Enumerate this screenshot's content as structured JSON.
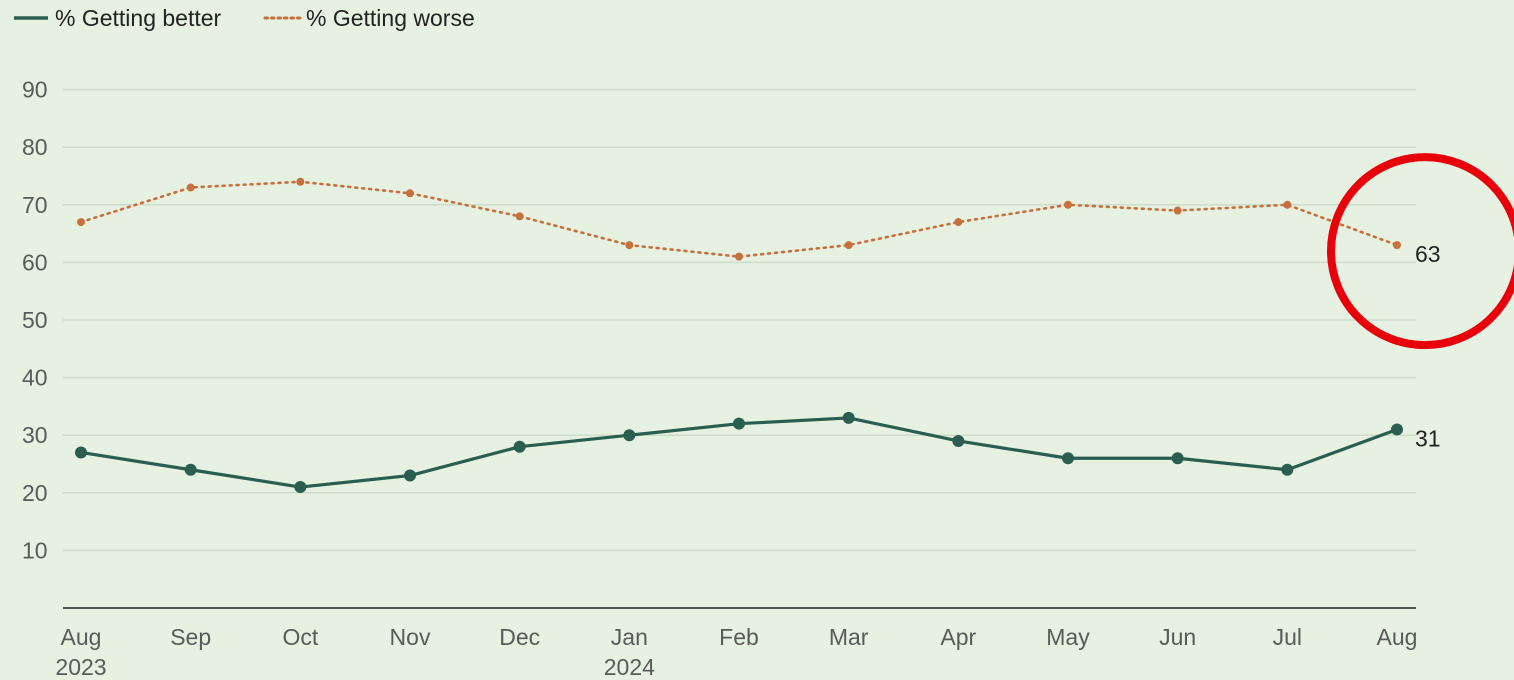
{
  "chart_data": {
    "type": "line",
    "x": [
      "Aug",
      "Sep",
      "Oct",
      "Nov",
      "Dec",
      "Jan",
      "Feb",
      "Mar",
      "Apr",
      "May",
      "Jun",
      "Jul",
      "Aug"
    ],
    "year_labels": [
      "2023",
      "",
      "",
      "",
      "",
      "2024",
      "",
      "",
      "",
      "",
      "",
      "",
      ""
    ],
    "series": [
      {
        "name": "% Getting better",
        "values": [
          27,
          24,
          21,
          23,
          28,
          30,
          32,
          33,
          29,
          26,
          26,
          24,
          31
        ],
        "color": "#2a5e50",
        "style": "solid",
        "end_label": "31"
      },
      {
        "name": "% Getting worse",
        "values": [
          67,
          73,
          74,
          72,
          68,
          63,
          61,
          63,
          67,
          70,
          69,
          70,
          63
        ],
        "color": "#c8703d",
        "style": "dotted",
        "end_label": "63"
      }
    ],
    "yticks": [
      10,
      20,
      30,
      40,
      50,
      60,
      70,
      80,
      90
    ],
    "ylim": [
      0,
      90
    ],
    "grid": true,
    "legend": "top-left",
    "annotation": {
      "type": "circle",
      "target": "last point of % Getting worse",
      "color": "#e8000b"
    }
  }
}
